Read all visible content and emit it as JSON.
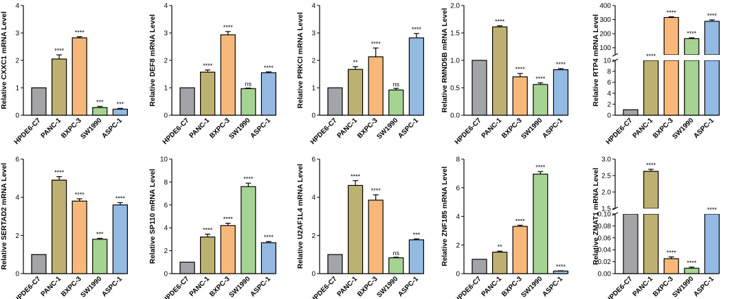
{
  "colors": {
    "HPDE6-C7": "#a3a3a8",
    "PANC-1": "#bdb172",
    "BXPC-3": "#f7b879",
    "SW1990": "#a6d392",
    "ASPC-1": "#94b9e2"
  },
  "chart_data": [
    {
      "type": "bar",
      "gene": "CXXC1",
      "ylabel": "Relative CXXC1 mRNA Level",
      "ylim": [
        0,
        4
      ],
      "yticks": [
        0,
        1,
        2,
        3,
        4
      ],
      "ytick_labels": [
        "0",
        "1",
        "2",
        "3",
        "4"
      ],
      "categories": [
        "HPDE6-C7",
        "PANC-1",
        "BXPC-3",
        "SW1990",
        "ASPC-1"
      ],
      "values": [
        1.0,
        2.05,
        2.82,
        0.28,
        0.22
      ],
      "errors": [
        0,
        0.15,
        0.04,
        0.04,
        0.03
      ],
      "significance": [
        "",
        "****",
        "****",
        "***",
        "***"
      ]
    },
    {
      "type": "bar",
      "gene": "DEF8",
      "ylabel": "Relative DEF8 mRNA Level",
      "ylim": [
        0,
        4
      ],
      "yticks": [
        0,
        1,
        2,
        3,
        4
      ],
      "ytick_labels": [
        "0",
        "1",
        "2",
        "3",
        "4"
      ],
      "categories": [
        "HPDE6-C7",
        "PANC-1",
        "BXPC-3",
        "SW1990",
        "ASPC-1"
      ],
      "values": [
        1.0,
        1.57,
        2.93,
        0.97,
        1.55
      ],
      "errors": [
        0,
        0.08,
        0.12,
        0.02,
        0.03
      ],
      "significance": [
        "",
        "****",
        "****",
        "ns",
        "****"
      ]
    },
    {
      "type": "bar",
      "gene": "PRKCI",
      "ylabel": "Relative PRKCI mRNA Level",
      "ylim": [
        0,
        4
      ],
      "yticks": [
        0,
        1,
        2,
        3,
        4
      ],
      "ytick_labels": [
        "0",
        "1",
        "2",
        "3",
        "4"
      ],
      "categories": [
        "HPDE6-C7",
        "PANC-1",
        "BXPC-3",
        "SW1990",
        "ASPC-1"
      ],
      "values": [
        1.0,
        1.67,
        2.13,
        0.92,
        2.82
      ],
      "errors": [
        0,
        0.1,
        0.32,
        0.06,
        0.16
      ],
      "significance": [
        "",
        "**",
        "****",
        "ns",
        "****"
      ]
    },
    {
      "type": "bar",
      "gene": "RMND5B",
      "ylabel": "Relative RMND5B mRNA Level",
      "ylim": [
        0,
        2.0
      ],
      "yticks": [
        0,
        0.5,
        1.0,
        1.5,
        2.0
      ],
      "ytick_labels": [
        "0.0",
        "0.5",
        "1.0",
        "1.5",
        "2.0"
      ],
      "categories": [
        "HPDE6-C7",
        "PANC-1",
        "BXPC-3",
        "SW1990",
        "ASPC-1"
      ],
      "values": [
        1.0,
        1.61,
        0.7,
        0.56,
        0.83
      ],
      "errors": [
        0,
        0.02,
        0.06,
        0.03,
        0.02
      ],
      "significance": [
        "",
        "****",
        "****",
        "****",
        "****"
      ]
    },
    {
      "type": "bar",
      "gene": "RTP4",
      "ylabel": "Relative RTP4 mRNA Level",
      "broken_axis": true,
      "lower_ylim": [
        0,
        10
      ],
      "upper_ylim": [
        50,
        400
      ],
      "lower_yticks": [
        0,
        2,
        4,
        6,
        8,
        10
      ],
      "lower_ytick_labels": [
        "0",
        "2",
        "4",
        "6",
        "8",
        "10"
      ],
      "upper_yticks": [
        100,
        200,
        300,
        400
      ],
      "upper_ytick_labels": [
        "100",
        "200",
        "300",
        "400"
      ],
      "categories": [
        "HPDE6-C7",
        "PANC-1",
        "BXPC-3",
        "SW1990",
        "ASPC-1"
      ],
      "values": [
        1.0,
        45,
        315,
        165,
        288
      ],
      "errors": [
        0,
        0,
        5,
        6,
        10
      ],
      "significance": [
        "",
        "****",
        "****",
        "****",
        "****"
      ]
    },
    {
      "type": "bar",
      "gene": "SERTAD2",
      "ylabel": "Relative SERTAD2 mRNA Level",
      "ylim": [
        0,
        6
      ],
      "yticks": [
        0,
        2,
        4,
        6
      ],
      "ytick_labels": [
        "0",
        "2",
        "4",
        "6"
      ],
      "categories": [
        "HPDE6-C7",
        "PANC-1",
        "BXPC-3",
        "SW1990",
        "ASPC-1"
      ],
      "values": [
        1.0,
        4.9,
        3.8,
        1.8,
        3.6
      ],
      "errors": [
        0,
        0.18,
        0.12,
        0.05,
        0.12
      ],
      "significance": [
        "",
        "****",
        "****",
        "***",
        "****"
      ]
    },
    {
      "type": "bar",
      "gene": "SP110",
      "ylabel": "Relative SP110 mRNA Level",
      "ylim": [
        0,
        10
      ],
      "yticks": [
        0,
        2,
        4,
        6,
        8,
        10
      ],
      "ytick_labels": [
        "0",
        "2",
        "4",
        "6",
        "8",
        "10"
      ],
      "categories": [
        "HPDE6-C7",
        "PANC-1",
        "BXPC-3",
        "SW1990",
        "ASPC-1"
      ],
      "values": [
        1.0,
        3.2,
        4.2,
        7.6,
        2.7
      ],
      "errors": [
        0,
        0.25,
        0.2,
        0.3,
        0.1
      ],
      "significance": [
        "",
        "****",
        "****",
        "****",
        "****"
      ]
    },
    {
      "type": "bar",
      "gene": "U2AF1L4",
      "ylabel": "Relative U2AF1L4 mRNA Level",
      "ylim": [
        0,
        6
      ],
      "yticks": [
        0,
        2,
        4,
        6
      ],
      "ytick_labels": [
        "0",
        "2",
        "4",
        "6"
      ],
      "categories": [
        "HPDE6-C7",
        "PANC-1",
        "BXPC-3",
        "SW1990",
        "ASPC-1"
      ],
      "values": [
        1.0,
        4.62,
        3.85,
        0.83,
        1.77
      ],
      "errors": [
        0,
        0.25,
        0.28,
        0.03,
        0.05
      ],
      "significance": [
        "",
        "****",
        "****",
        "ns",
        "***"
      ]
    },
    {
      "type": "bar",
      "gene": "ZNF185",
      "ylabel": "Relative ZNF185 mRNA Level",
      "ylim": [
        0,
        8
      ],
      "yticks": [
        0,
        2,
        4,
        6,
        8
      ],
      "ytick_labels": [
        "0",
        "2",
        "4",
        "6",
        "8"
      ],
      "categories": [
        "HPDE6-C7",
        "PANC-1",
        "BXPC-3",
        "SW1990",
        "ASPC-1"
      ],
      "values": [
        1.0,
        1.5,
        3.3,
        6.95,
        0.18
      ],
      "errors": [
        0,
        0.07,
        0.08,
        0.18,
        0.02
      ],
      "significance": [
        "",
        "**",
        "****",
        "****",
        "****"
      ]
    },
    {
      "type": "bar",
      "gene": "ZMAT1",
      "ylabel": "Relative ZMAT1 mRNA Level",
      "broken_axis": true,
      "lower_ylim": [
        0,
        0.1
      ],
      "upper_ylim": [
        1.5,
        3.0
      ],
      "lower_yticks": [
        0,
        0.02,
        0.04,
        0.06,
        0.08,
        0.1
      ],
      "lower_ytick_labels": [
        "0.00",
        "0.02",
        "0.04",
        "0.06",
        "0.08",
        "0.10"
      ],
      "upper_yticks": [
        1.5,
        2.0,
        2.5,
        3.0
      ],
      "upper_ytick_labels": [
        "1.5",
        "2.0",
        "2.5",
        "3.0"
      ],
      "categories": [
        "HPDE6-C7",
        "PANC-1",
        "BXPC-3",
        "SW1990",
        "ASPC-1"
      ],
      "values": [
        1.0,
        2.63,
        0.025,
        0.009,
        1.0
      ],
      "errors": [
        0,
        0.06,
        0.003,
        0.002,
        0
      ],
      "significance": [
        "",
        "****",
        "****",
        "****",
        "****"
      ]
    }
  ]
}
